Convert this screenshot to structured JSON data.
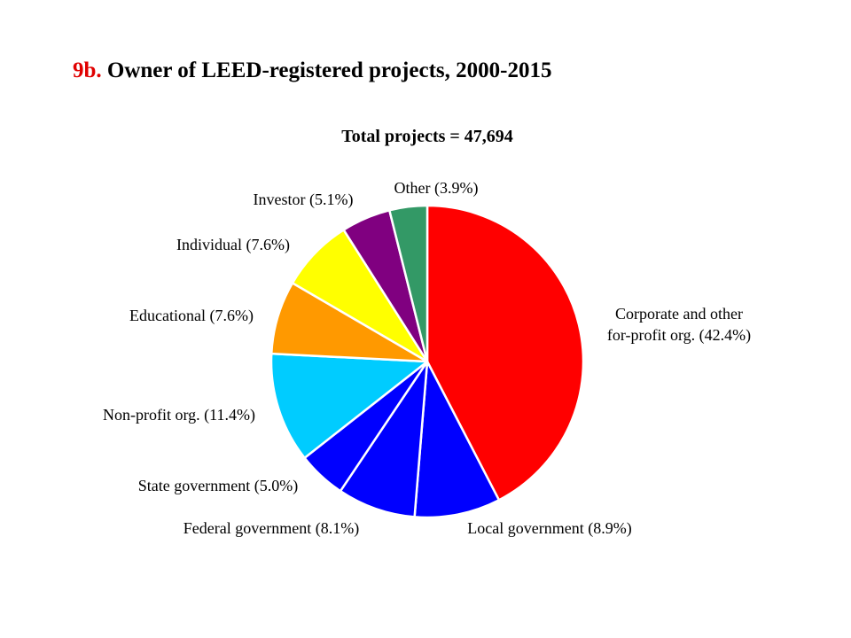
{
  "slide": {
    "title_prefix": "9b.",
    "title_main": "Owner of LEED-registered projects, 2000-2015"
  },
  "chart_data": {
    "type": "pie",
    "subtitle": "Total projects = 47,694",
    "start_angle": "12 o'clock",
    "direction": "clockwise",
    "slices": [
      {
        "name": "Corporate and other for-profit org.",
        "value": 42.4,
        "label_lines": [
          "Corporate and other",
          "for-profit org. (42.4%)"
        ],
        "color": "#ff0000"
      },
      {
        "name": "Local government",
        "value": 8.9,
        "label_lines": [
          "Local government  (8.9%)"
        ],
        "color": "#0000ff"
      },
      {
        "name": "Federal government",
        "value": 8.1,
        "label_lines": [
          "Federal government  (8.1%)"
        ],
        "color": "#0000ff"
      },
      {
        "name": "State government",
        "value": 5.0,
        "label_lines": [
          "State government  (5.0%)"
        ],
        "color": "#0000ff"
      },
      {
        "name": "Non-profit org.",
        "value": 11.4,
        "label_lines": [
          "Non-profit org. (11.4%)"
        ],
        "color": "#00ccff"
      },
      {
        "name": "Educational",
        "value": 7.6,
        "label_lines": [
          "Educational  (7.6%)"
        ],
        "color": "#ff9900"
      },
      {
        "name": "Individual",
        "value": 7.6,
        "label_lines": [
          "Individual  (7.6%)"
        ],
        "color": "#ffff00"
      },
      {
        "name": "Investor",
        "value": 5.1,
        "label_lines": [
          "Investor  (5.1%)"
        ],
        "color": "#800080"
      },
      {
        "name": "Other",
        "value": 3.9,
        "label_lines": [
          "Other  (3.9%)"
        ],
        "color": "#339966"
      }
    ]
  }
}
